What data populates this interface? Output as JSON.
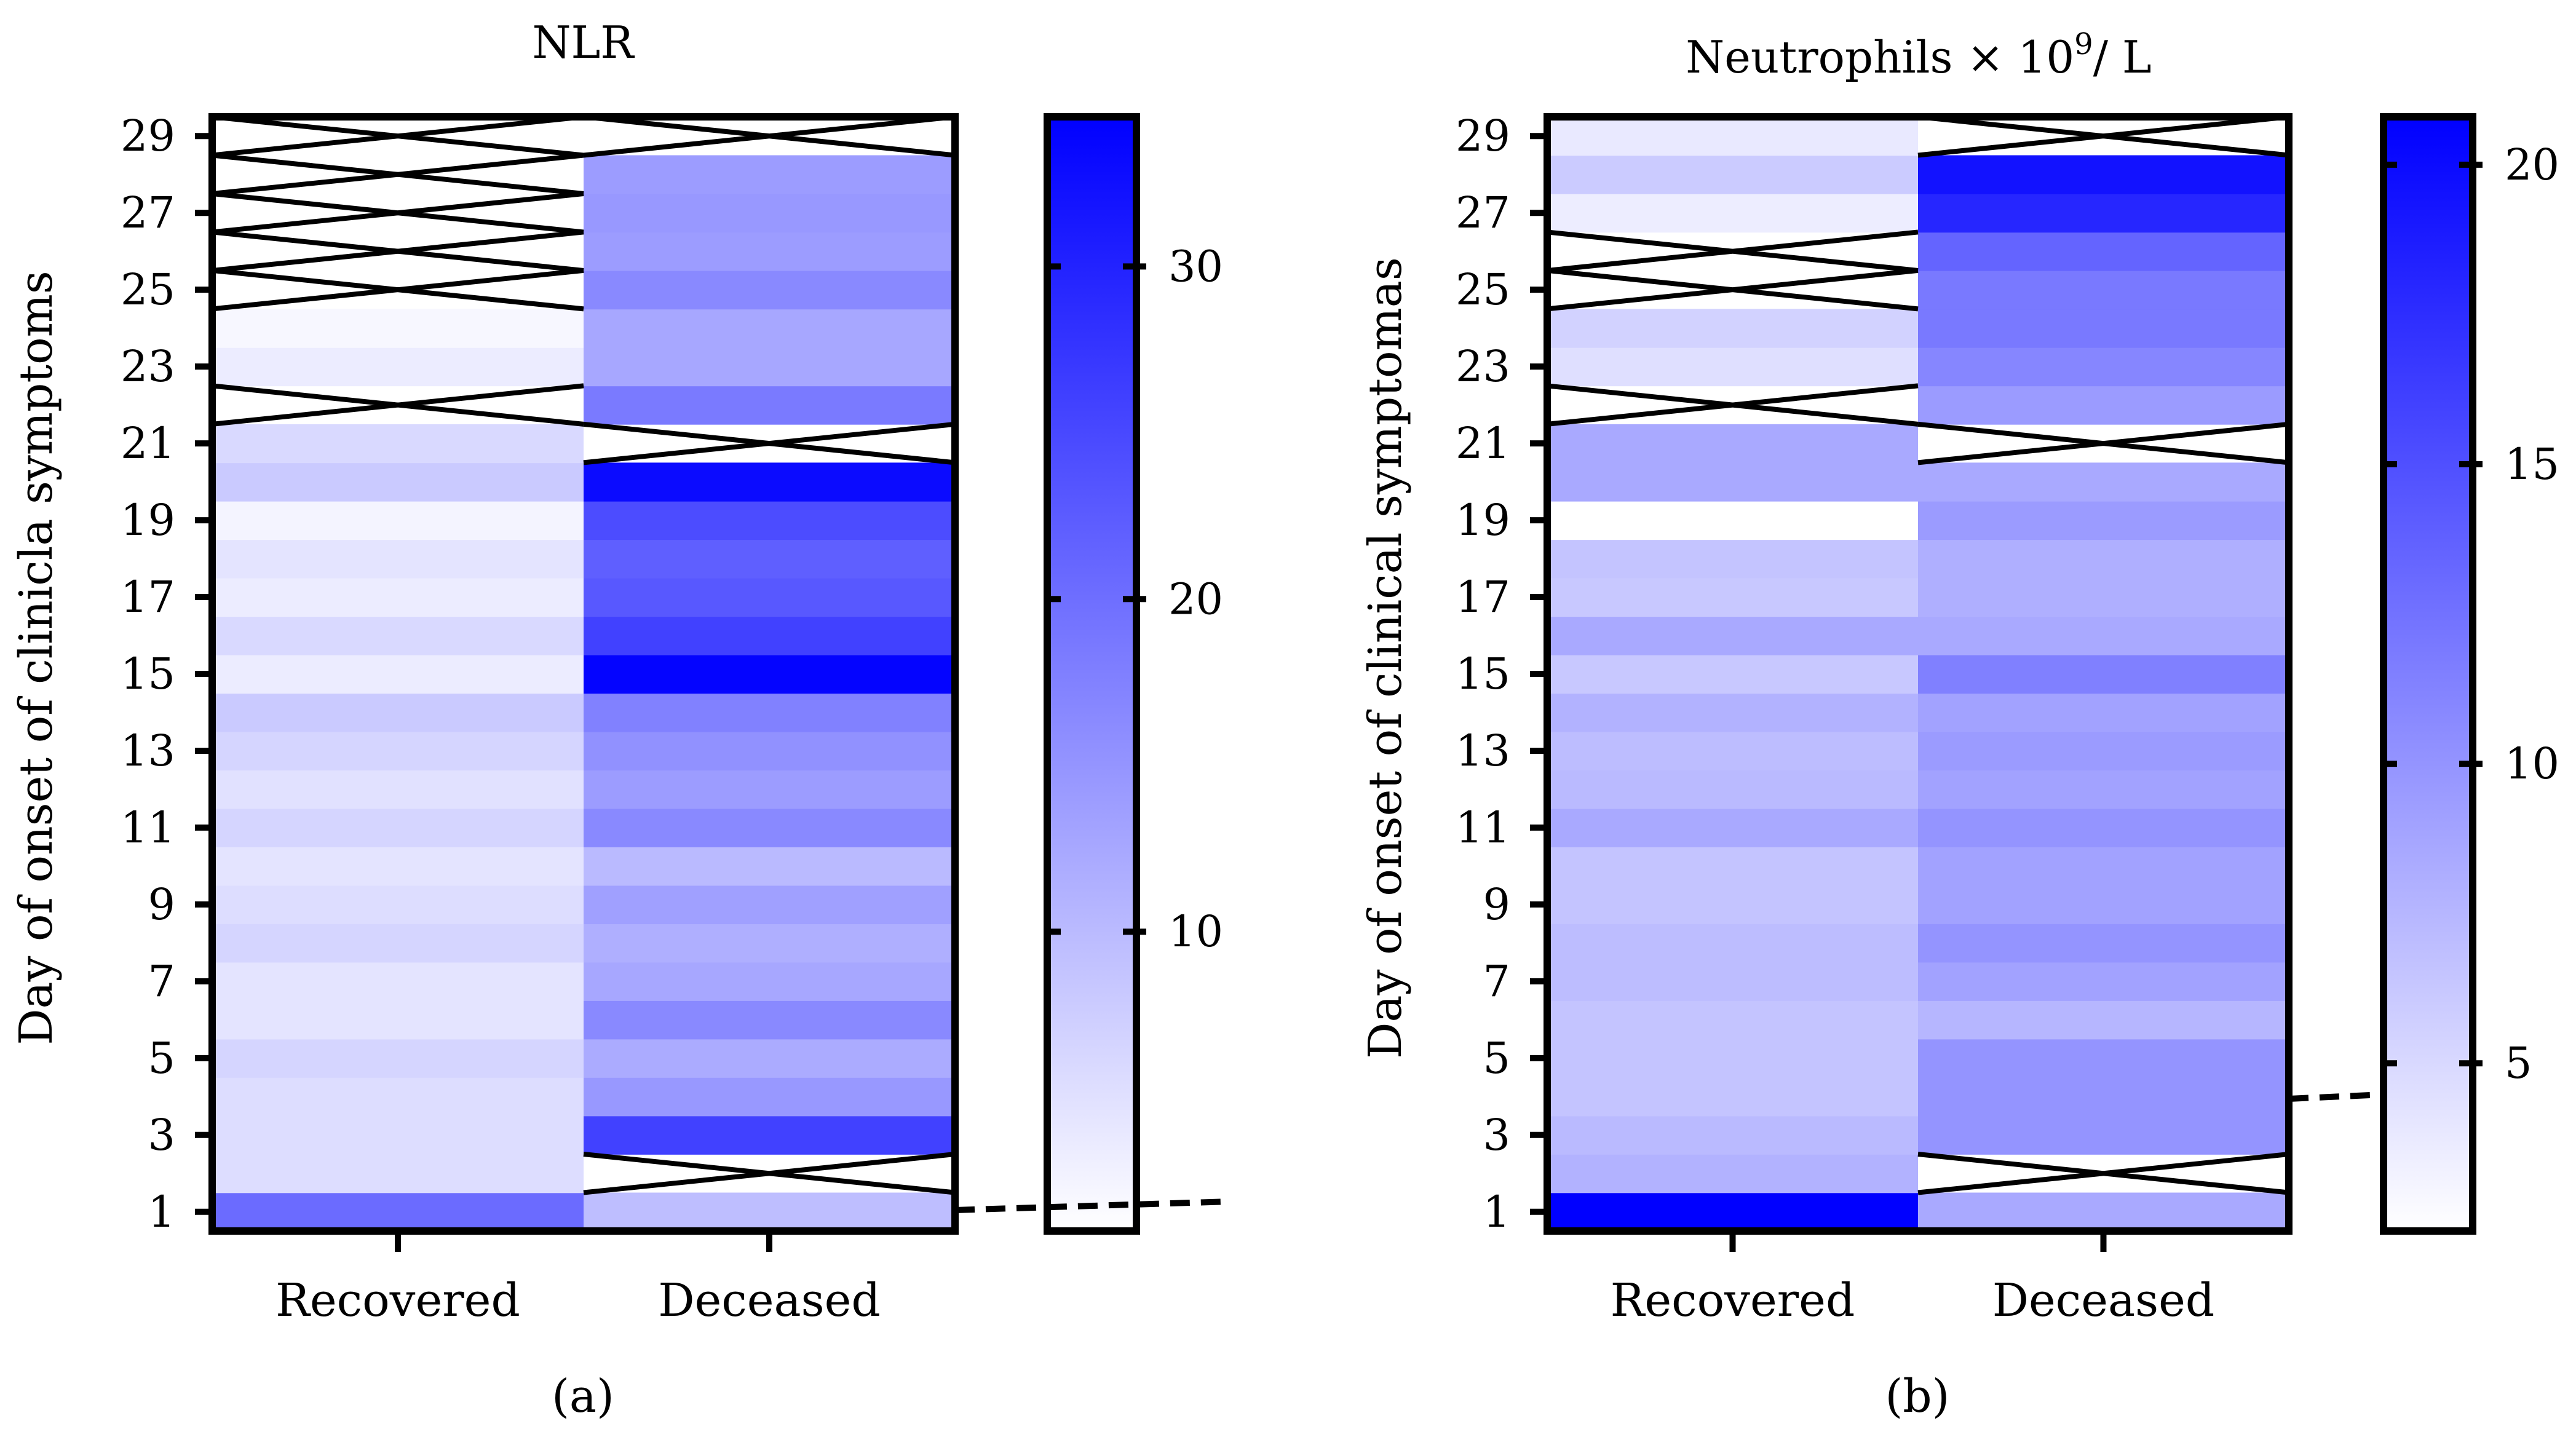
{
  "colors": {
    "low": "#ffffff",
    "high": "#0000ff",
    "line": "#000000"
  },
  "chart_data": [
    {
      "type": "heatmap",
      "title": "NLR",
      "sub_label": "(a)",
      "ylabel": "Day of onset of clinicla symptoms",
      "categories": [
        "Recovered",
        "Deceased"
      ],
      "yticks": [
        "1",
        "3",
        "5",
        "7",
        "9",
        "11",
        "13",
        "15",
        "17",
        "19",
        "21",
        "23",
        "25",
        "27",
        "29"
      ],
      "ylim": [
        0.5,
        29.5
      ],
      "colorbar": {
        "ticks": [
          "10",
          "20",
          "30"
        ],
        "tick_values": [
          10,
          20,
          30
        ],
        "min": 1,
        "max": 34.5
      },
      "series": [
        {
          "name": "Recovered",
          "values": [
            {
              "day": 1,
              "value": 20.5
            },
            {
              "day": 2,
              "value": 5.5
            },
            {
              "day": 3,
              "value": 5.5
            },
            {
              "day": 4,
              "value": 5.5
            },
            {
              "day": 5,
              "value": 6.5
            },
            {
              "day": 6,
              "value": 4.5
            },
            {
              "day": 7,
              "value": 4.5
            },
            {
              "day": 8,
              "value": 6.5
            },
            {
              "day": 9,
              "value": 5.5
            },
            {
              "day": 10,
              "value": 4.5
            },
            {
              "day": 11,
              "value": 6.5
            },
            {
              "day": 12,
              "value": 5.0
            },
            {
              "day": 13,
              "value": 6.5
            },
            {
              "day": 14,
              "value": 8.0
            },
            {
              "day": 15,
              "value": 3.5
            },
            {
              "day": 16,
              "value": 6.0
            },
            {
              "day": 17,
              "value": 3.5
            },
            {
              "day": 18,
              "value": 4.5
            },
            {
              "day": 19,
              "value": 2.5
            },
            {
              "day": 20,
              "value": 8.0
            },
            {
              "day": 21,
              "value": 6.0
            },
            {
              "day": 23,
              "value": 3.5
            },
            {
              "day": 24,
              "value": 2.0
            }
          ]
        },
        {
          "name": "Deceased",
          "values": [
            {
              "day": 1,
              "value": 9.5
            },
            {
              "day": 3,
              "value": 26.0
            },
            {
              "day": 4,
              "value": 14.5
            },
            {
              "day": 5,
              "value": 12.0
            },
            {
              "day": 6,
              "value": 16.5
            },
            {
              "day": 7,
              "value": 12.5
            },
            {
              "day": 8,
              "value": 11.5
            },
            {
              "day": 9,
              "value": 13.5
            },
            {
              "day": 10,
              "value": 10.0
            },
            {
              "day": 11,
              "value": 16.5
            },
            {
              "day": 12,
              "value": 14.0
            },
            {
              "day": 13,
              "value": 15.5
            },
            {
              "day": 14,
              "value": 17.5
            },
            {
              "day": 15,
              "value": 34.0
            },
            {
              "day": 16,
              "value": 26.0
            },
            {
              "day": 17,
              "value": 23.0
            },
            {
              "day": 18,
              "value": 22.0
            },
            {
              "day": 19,
              "value": 24.5
            },
            {
              "day": 20,
              "value": 33.0
            },
            {
              "day": 22,
              "value": 18.5
            },
            {
              "day": 23,
              "value": 12.5
            },
            {
              "day": 24,
              "value": 12.5
            },
            {
              "day": 25,
              "value": 16.5
            },
            {
              "day": 26,
              "value": 14.0
            },
            {
              "day": 27,
              "value": 14.5
            },
            {
              "day": 28,
              "value": 14.0
            }
          ]
        }
      ],
      "missing": {
        "Recovered": [
          22,
          25,
          26,
          27,
          28,
          29
        ],
        "Deceased": [
          2,
          21,
          29
        ]
      }
    },
    {
      "type": "heatmap",
      "title": "Neutrophils × 10",
      "title_sup": "9",
      "title_unit": "/ L",
      "sub_label": "(b)",
      "ylabel": "Day of onset of clinical symptomas",
      "categories": [
        "Recovered",
        "Deceased"
      ],
      "yticks": [
        "1",
        "3",
        "5",
        "7",
        "9",
        "11",
        "13",
        "15",
        "17",
        "19",
        "21",
        "23",
        "25",
        "27",
        "29"
      ],
      "ylim": [
        0.5,
        29.5
      ],
      "colorbar": {
        "ticks": [
          "5",
          "10",
          "15",
          "20"
        ],
        "tick_values": [
          5,
          10,
          15,
          20
        ],
        "min": 2.2,
        "max": 20.8
      },
      "series": [
        {
          "name": "Recovered",
          "values": [
            {
              "day": 1,
              "value": 20.8
            },
            {
              "day": 2,
              "value": 7.8
            },
            {
              "day": 3,
              "value": 7.2
            },
            {
              "day": 4,
              "value": 6.5
            },
            {
              "day": 5,
              "value": 6.5
            },
            {
              "day": 6,
              "value": 6.5
            },
            {
              "day": 7,
              "value": 7.0
            },
            {
              "day": 8,
              "value": 7.0
            },
            {
              "day": 9,
              "value": 6.5
            },
            {
              "day": 10,
              "value": 6.5
            },
            {
              "day": 11,
              "value": 8.5
            },
            {
              "day": 12,
              "value": 7.2
            },
            {
              "day": 13,
              "value": 7.0
            },
            {
              "day": 14,
              "value": 7.8
            },
            {
              "day": 15,
              "value": 6.2
            },
            {
              "day": 16,
              "value": 8.5
            },
            {
              "day": 17,
              "value": 6.2
            },
            {
              "day": 18,
              "value": 6.5
            },
            {
              "day": 19,
              "value": 2.2
            },
            {
              "day": 20,
              "value": 8.5
            },
            {
              "day": 21,
              "value": 8.5
            },
            {
              "day": 23,
              "value": 4.5
            },
            {
              "day": 24,
              "value": 5.5
            },
            {
              "day": 27,
              "value": 3.5
            },
            {
              "day": 28,
              "value": 6.0
            },
            {
              "day": 29,
              "value": 3.8
            }
          ]
        },
        {
          "name": "Deceased",
          "values": [
            {
              "day": 1,
              "value": 8.5
            },
            {
              "day": 3,
              "value": 10.0
            },
            {
              "day": 4,
              "value": 10.0
            },
            {
              "day": 5,
              "value": 10.0
            },
            {
              "day": 6,
              "value": 7.5
            },
            {
              "day": 7,
              "value": 9.0
            },
            {
              "day": 8,
              "value": 10.0
            },
            {
              "day": 9,
              "value": 9.0
            },
            {
              "day": 10,
              "value": 9.0
            },
            {
              "day": 11,
              "value": 10.0
            },
            {
              "day": 12,
              "value": 9.0
            },
            {
              "day": 13,
              "value": 9.5
            },
            {
              "day": 14,
              "value": 9.0
            },
            {
              "day": 15,
              "value": 11.5
            },
            {
              "day": 16,
              "value": 8.5
            },
            {
              "day": 17,
              "value": 8.0
            },
            {
              "day": 18,
              "value": 8.0
            },
            {
              "day": 19,
              "value": 9.5
            },
            {
              "day": 20,
              "value": 8.5
            },
            {
              "day": 22,
              "value": 9.5
            },
            {
              "day": 23,
              "value": 11.0
            },
            {
              "day": 24,
              "value": 12.0
            },
            {
              "day": 25,
              "value": 12.0
            },
            {
              "day": 26,
              "value": 13.5
            },
            {
              "day": 27,
              "value": 18.0
            },
            {
              "day": 28,
              "value": 19.5
            }
          ]
        }
      ],
      "missing": {
        "Recovered": [
          22,
          25,
          26
        ],
        "Deceased": [
          2,
          21,
          29
        ]
      }
    }
  ]
}
